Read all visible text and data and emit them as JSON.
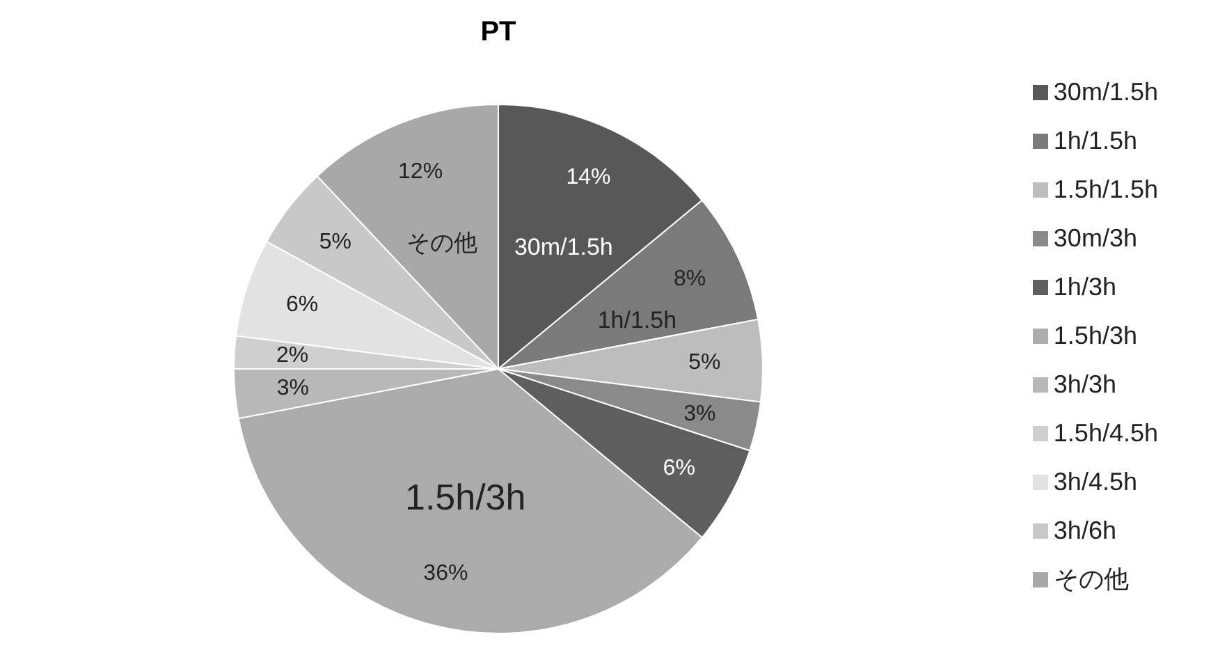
{
  "chart_data": {
    "type": "pie",
    "title": "PT",
    "categories": [
      "30m/1.5h",
      "1h/1.5h",
      "1.5h/1.5h",
      "30m/3h",
      "1h/3h",
      "1.5h/3h",
      "3h/3h",
      "1.5h/4.5h",
      "3h/4.5h",
      "3h/6h",
      "その他"
    ],
    "values": [
      14,
      8,
      5,
      3,
      6,
      36,
      3,
      2,
      6,
      5,
      12
    ],
    "colors": [
      "#585858",
      "#7a7a7a",
      "#bdbdbd",
      "#8a8a8a",
      "#5e5e5e",
      "#ababab",
      "#b8b8b8",
      "#cfcfcf",
      "#e2e2e2",
      "#c8c8c8",
      "#a8a8a8"
    ],
    "value_labels": [
      "14%",
      "8%",
      "5%",
      "3%",
      "6%",
      "36%",
      "3%",
      "2%",
      "6%",
      "5%",
      "12%"
    ],
    "legend": "right",
    "annotations": [
      {
        "text": "30m/1.5h",
        "x": "30m/1.5h"
      },
      {
        "text": "1h/1.5h",
        "x": "1h/1.5h"
      },
      {
        "text": "1.5h/3h",
        "x": "1.5h/3h"
      },
      {
        "text": "その他",
        "x": "その他"
      }
    ]
  }
}
